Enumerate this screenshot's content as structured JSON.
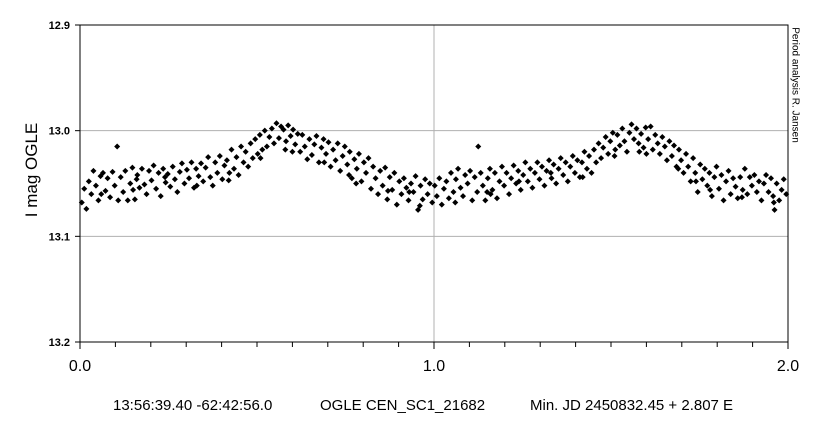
{
  "chart_data": {
    "type": "scatter",
    "ylabel": "I mag OGLE",
    "xlabel": "",
    "xlim": [
      0.0,
      2.0
    ],
    "ylim": [
      12.9,
      13.2
    ],
    "y_inverted": true,
    "x_ticks": [
      "0.0",
      "1.0",
      "2.0"
    ],
    "y_ticks": [
      "12.9",
      "13.0",
      "13.1",
      "13.2"
    ],
    "grid": true,
    "marker": "diamond",
    "marker_color": "#000000",
    "side_note": "Period analysis  R. Jansen",
    "caption": {
      "coords": "13:56:39.40 -62:42:56.0",
      "star": "OGLE CEN_SC1_21682",
      "ephemeris": "Min. JD 2450832.45 + 2.807 E"
    },
    "points": [
      [
        0.005,
        13.068
      ],
      [
        0.012,
        13.055
      ],
      [
        0.018,
        13.074
      ],
      [
        0.025,
        13.048
      ],
      [
        0.032,
        13.06
      ],
      [
        0.038,
        13.038
      ],
      [
        0.045,
        13.052
      ],
      [
        0.052,
        13.066
      ],
      [
        0.058,
        13.043
      ],
      [
        0.065,
        13.04
      ],
      [
        0.072,
        13.057
      ],
      [
        0.078,
        13.045
      ],
      [
        0.085,
        13.063
      ],
      [
        0.092,
        13.039
      ],
      [
        0.098,
        13.052
      ],
      [
        0.105,
        13.015
      ],
      [
        0.108,
        13.066
      ],
      [
        0.115,
        13.044
      ],
      [
        0.122,
        13.058
      ],
      [
        0.128,
        13.038
      ],
      [
        0.135,
        13.066
      ],
      [
        0.142,
        13.05
      ],
      [
        0.148,
        13.035
      ],
      [
        0.155,
        13.065
      ],
      [
        0.162,
        13.042
      ],
      [
        0.168,
        13.054
      ],
      [
        0.175,
        13.036
      ],
      [
        0.182,
        13.051
      ],
      [
        0.188,
        13.06
      ],
      [
        0.195,
        13.038
      ],
      [
        0.202,
        13.047
      ],
      [
        0.208,
        13.033
      ],
      [
        0.215,
        13.055
      ],
      [
        0.222,
        13.04
      ],
      [
        0.228,
        13.062
      ],
      [
        0.235,
        13.036
      ],
      [
        0.242,
        13.049
      ],
      [
        0.248,
        13.041
      ],
      [
        0.255,
        13.053
      ],
      [
        0.262,
        13.034
      ],
      [
        0.268,
        13.046
      ],
      [
        0.275,
        13.058
      ],
      [
        0.282,
        13.039
      ],
      [
        0.288,
        13.031
      ],
      [
        0.295,
        13.05
      ],
      [
        0.302,
        13.037
      ],
      [
        0.308,
        13.045
      ],
      [
        0.315,
        13.03
      ],
      [
        0.322,
        13.054
      ],
      [
        0.328,
        13.036
      ],
      [
        0.335,
        13.043
      ],
      [
        0.342,
        13.031
      ],
      [
        0.348,
        13.048
      ],
      [
        0.355,
        13.035
      ],
      [
        0.362,
        13.025
      ],
      [
        0.368,
        13.044
      ],
      [
        0.375,
        13.052
      ],
      [
        0.382,
        13.03
      ],
      [
        0.388,
        13.04
      ],
      [
        0.395,
        13.024
      ],
      [
        0.402,
        13.046
      ],
      [
        0.408,
        13.033
      ],
      [
        0.415,
        13.028
      ],
      [
        0.422,
        13.04
      ],
      [
        0.428,
        13.018
      ],
      [
        0.435,
        13.036
      ],
      [
        0.442,
        13.025
      ],
      [
        0.448,
        13.042
      ],
      [
        0.455,
        13.015
      ],
      [
        0.462,
        13.03
      ],
      [
        0.468,
        13.02
      ],
      [
        0.475,
        13.034
      ],
      [
        0.482,
        13.012
      ],
      [
        0.488,
        13.026
      ],
      [
        0.495,
        13.008
      ],
      [
        0.502,
        13.022
      ],
      [
        0.508,
        13.004
      ],
      [
        0.515,
        13.018
      ],
      [
        0.522,
        13.0
      ],
      [
        0.528,
        13.015
      ],
      [
        0.535,
        13.006
      ],
      [
        0.542,
        12.998
      ],
      [
        0.548,
        13.012
      ],
      [
        0.555,
        12.993
      ],
      [
        0.562,
        13.007
      ],
      [
        0.568,
        12.996
      ],
      [
        0.575,
        12.999
      ],
      [
        0.582,
        13.01
      ],
      [
        0.588,
        12.995
      ],
      [
        0.595,
        13.005
      ],
      [
        0.602,
        12.999
      ],
      [
        0.608,
        13.013
      ],
      [
        0.615,
        13.003
      ],
      [
        0.622,
        13.02
      ],
      [
        0.628,
        13.004
      ],
      [
        0.635,
        13.015
      ],
      [
        0.642,
        13.027
      ],
      [
        0.648,
        13.008
      ],
      [
        0.655,
        13.023
      ],
      [
        0.662,
        13.013
      ],
      [
        0.668,
        13.005
      ],
      [
        0.675,
        13.03
      ],
      [
        0.682,
        13.016
      ],
      [
        0.688,
        13.008
      ],
      [
        0.695,
        13.022
      ],
      [
        0.702,
        13.011
      ],
      [
        0.708,
        13.034
      ],
      [
        0.715,
        13.018
      ],
      [
        0.722,
        13.028
      ],
      [
        0.728,
        13.012
      ],
      [
        0.735,
        13.038
      ],
      [
        0.742,
        13.024
      ],
      [
        0.748,
        13.015
      ],
      [
        0.755,
        13.032
      ],
      [
        0.762,
        13.02
      ],
      [
        0.768,
        13.045
      ],
      [
        0.775,
        13.027
      ],
      [
        0.782,
        13.036
      ],
      [
        0.788,
        13.022
      ],
      [
        0.795,
        13.048
      ],
      [
        0.802,
        13.03
      ],
      [
        0.808,
        13.04
      ],
      [
        0.815,
        13.026
      ],
      [
        0.822,
        13.055
      ],
      [
        0.828,
        13.034
      ],
      [
        0.835,
        13.045
      ],
      [
        0.842,
        13.06
      ],
      [
        0.848,
        13.038
      ],
      [
        0.855,
        13.052
      ],
      [
        0.862,
        13.035
      ],
      [
        0.868,
        13.065
      ],
      [
        0.875,
        13.044
      ],
      [
        0.882,
        13.056
      ],
      [
        0.888,
        13.04
      ],
      [
        0.895,
        13.07
      ],
      [
        0.902,
        13.048
      ],
      [
        0.908,
        13.06
      ],
      [
        0.915,
        13.045
      ],
      [
        0.922,
        13.054
      ],
      [
        0.928,
        13.066
      ],
      [
        0.935,
        13.05
      ],
      [
        0.942,
        13.058
      ],
      [
        0.948,
        13.043
      ],
      [
        0.955,
        13.075
      ],
      [
        0.962,
        13.052
      ],
      [
        0.968,
        13.065
      ],
      [
        0.975,
        13.046
      ],
      [
        0.982,
        13.06
      ],
      [
        0.988,
        13.05
      ],
      [
        0.995,
        13.068
      ],
      [
        1.002,
        13.052
      ],
      [
        1.008,
        13.062
      ],
      [
        1.015,
        13.045
      ],
      [
        1.022,
        13.07
      ],
      [
        1.028,
        13.055
      ],
      [
        1.035,
        13.048
      ],
      [
        1.042,
        13.064
      ],
      [
        1.048,
        13.04
      ],
      [
        1.055,
        13.058
      ],
      [
        1.062,
        13.046
      ],
      [
        1.068,
        13.036
      ],
      [
        1.075,
        13.054
      ],
      [
        1.082,
        13.062
      ],
      [
        1.088,
        13.042
      ],
      [
        1.095,
        13.05
      ],
      [
        1.102,
        13.038
      ],
      [
        1.108,
        13.066
      ],
      [
        1.115,
        13.044
      ],
      [
        1.122,
        13.058
      ],
      [
        1.125,
        13.015
      ],
      [
        1.132,
        13.04
      ],
      [
        1.138,
        13.052
      ],
      [
        1.145,
        13.066
      ],
      [
        1.152,
        13.045
      ],
      [
        1.158,
        13.036
      ],
      [
        1.165,
        13.056
      ],
      [
        1.172,
        13.04
      ],
      [
        1.178,
        13.064
      ],
      [
        1.185,
        13.048
      ],
      [
        1.192,
        13.034
      ],
      [
        1.198,
        13.052
      ],
      [
        1.205,
        13.04
      ],
      [
        1.212,
        13.06
      ],
      [
        1.218,
        13.045
      ],
      [
        1.225,
        13.033
      ],
      [
        1.232,
        13.05
      ],
      [
        1.238,
        13.038
      ],
      [
        1.245,
        13.056
      ],
      [
        1.252,
        13.042
      ],
      [
        1.258,
        13.03
      ],
      [
        1.265,
        13.048
      ],
      [
        1.272,
        13.036
      ],
      [
        1.278,
        13.054
      ],
      [
        1.285,
        13.04
      ],
      [
        1.292,
        13.03
      ],
      [
        1.298,
        13.046
      ],
      [
        1.305,
        13.034
      ],
      [
        1.312,
        13.052
      ],
      [
        1.318,
        13.038
      ],
      [
        1.325,
        13.028
      ],
      [
        1.332,
        13.045
      ],
      [
        1.338,
        13.032
      ],
      [
        1.345,
        13.05
      ],
      [
        1.352,
        13.036
      ],
      [
        1.358,
        13.026
      ],
      [
        1.365,
        13.042
      ],
      [
        1.372,
        13.03
      ],
      [
        1.378,
        13.048
      ],
      [
        1.385,
        13.034
      ],
      [
        1.392,
        13.024
      ],
      [
        1.398,
        13.04
      ],
      [
        1.405,
        13.028
      ],
      [
        1.412,
        13.044
      ],
      [
        1.418,
        13.03
      ],
      [
        1.425,
        13.02
      ],
      [
        1.432,
        13.036
      ],
      [
        1.438,
        13.024
      ],
      [
        1.445,
        13.04
      ],
      [
        1.452,
        13.018
      ],
      [
        1.458,
        13.03
      ],
      [
        1.465,
        13.012
      ],
      [
        1.472,
        13.026
      ],
      [
        1.478,
        13.016
      ],
      [
        1.485,
        13.006
      ],
      [
        1.492,
        13.022
      ],
      [
        1.498,
        13.01
      ],
      [
        1.505,
        13.002
      ],
      [
        1.512,
        13.018
      ],
      [
        1.518,
        13.004
      ],
      [
        1.525,
        13.014
      ],
      [
        1.532,
        12.998
      ],
      [
        1.538,
        13.01
      ],
      [
        1.545,
        13.02
      ],
      [
        1.552,
        13.002
      ],
      [
        1.558,
        12.994
      ],
      [
        1.565,
        13.008
      ],
      [
        1.572,
        12.998
      ],
      [
        1.578,
        13.012
      ],
      [
        1.585,
        13.003
      ],
      [
        1.592,
        13.016
      ],
      [
        1.598,
        12.997
      ],
      [
        1.605,
        13.008
      ],
      [
        1.612,
        12.996
      ],
      [
        1.618,
        13.018
      ],
      [
        1.625,
        13.004
      ],
      [
        1.632,
        13.012
      ],
      [
        1.638,
        13.022
      ],
      [
        1.645,
        13.006
      ],
      [
        1.652,
        13.015
      ],
      [
        1.658,
        13.028
      ],
      [
        1.665,
        13.01
      ],
      [
        1.672,
        13.024
      ],
      [
        1.678,
        13.014
      ],
      [
        1.685,
        13.034
      ],
      [
        1.692,
        13.018
      ],
      [
        1.698,
        13.028
      ],
      [
        1.705,
        13.04
      ],
      [
        1.712,
        13.022
      ],
      [
        1.718,
        13.034
      ],
      [
        1.725,
        13.048
      ],
      [
        1.732,
        13.026
      ],
      [
        1.738,
        13.04
      ],
      [
        1.745,
        13.058
      ],
      [
        1.752,
        13.032
      ],
      [
        1.758,
        13.046
      ],
      [
        1.765,
        13.036
      ],
      [
        1.772,
        13.052
      ],
      [
        1.778,
        13.04
      ],
      [
        1.785,
        13.062
      ],
      [
        1.792,
        13.044
      ],
      [
        1.798,
        13.034
      ],
      [
        1.805,
        13.055
      ],
      [
        1.812,
        13.042
      ],
      [
        1.818,
        13.066
      ],
      [
        1.825,
        13.048
      ],
      [
        1.832,
        13.038
      ],
      [
        1.838,
        13.06
      ],
      [
        1.845,
        13.045
      ],
      [
        1.852,
        13.053
      ],
      [
        1.858,
        13.064
      ],
      [
        1.865,
        13.044
      ],
      [
        1.872,
        13.056
      ],
      [
        1.878,
        13.036
      ],
      [
        1.885,
        13.06
      ],
      [
        1.892,
        13.044
      ],
      [
        1.898,
        13.052
      ],
      [
        1.905,
        13.042
      ],
      [
        1.912,
        13.058
      ],
      [
        1.918,
        13.048
      ],
      [
        1.925,
        13.066
      ],
      [
        1.932,
        13.05
      ],
      [
        1.938,
        13.042
      ],
      [
        1.945,
        13.058
      ],
      [
        1.952,
        13.045
      ],
      [
        1.958,
        13.062
      ],
      [
        1.962,
        13.075
      ],
      [
        1.968,
        13.05
      ],
      [
        1.975,
        13.066
      ],
      [
        1.982,
        13.056
      ],
      [
        1.988,
        13.046
      ],
      [
        1.995,
        13.06
      ],
      [
        0.06,
        13.06
      ],
      [
        0.15,
        13.056
      ],
      [
        0.24,
        13.044
      ],
      [
        0.33,
        13.052
      ],
      [
        0.42,
        13.047
      ],
      [
        0.51,
        13.026
      ],
      [
        0.6,
        13.02
      ],
      [
        0.69,
        13.03
      ],
      [
        0.78,
        13.05
      ],
      [
        0.87,
        13.057
      ],
      [
        0.96,
        13.071
      ],
      [
        1.06,
        13.068
      ],
      [
        1.15,
        13.058
      ],
      [
        1.24,
        13.048
      ],
      [
        1.33,
        13.04
      ],
      [
        1.42,
        13.044
      ],
      [
        1.51,
        13.024
      ],
      [
        1.6,
        13.022
      ],
      [
        1.69,
        13.036
      ],
      [
        1.78,
        13.056
      ],
      [
        1.87,
        13.063
      ],
      [
        1.96,
        13.068
      ],
      [
        0.58,
        13.018
      ],
      [
        1.58,
        13.02
      ],
      [
        0.16,
        13.046
      ],
      [
        0.76,
        13.042
      ],
      [
        0.93,
        13.058
      ],
      [
        1.16,
        13.06
      ],
      [
        1.74,
        13.048
      ]
    ]
  }
}
